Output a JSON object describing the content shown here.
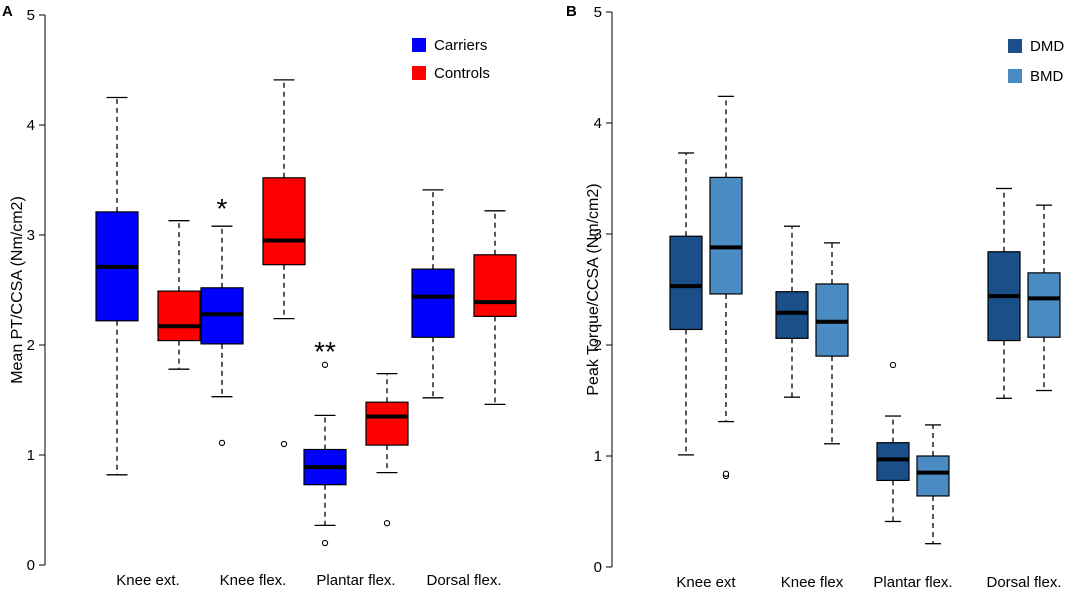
{
  "chart_data": [
    {
      "type": "box",
      "panel": "A",
      "ylabel": "Mean PT/CCSA (Nm/cm2)",
      "ylim": [
        0,
        5
      ],
      "yticks": [
        0,
        1,
        2,
        3,
        4,
        5
      ],
      "categories": [
        "Knee ext.",
        "Knee flex.",
        "Plantar flex.",
        "Dorsal flex."
      ],
      "legend_position": "top-right",
      "series": [
        {
          "name": "Carriers",
          "color": "#0000ff",
          "boxes": [
            {
              "min": 0.82,
              "q1": 2.22,
              "median": 2.71,
              "q3": 3.21,
              "max": 4.25,
              "outliers": []
            },
            {
              "min": 1.53,
              "q1": 2.01,
              "median": 2.28,
              "q3": 2.52,
              "max": 3.08,
              "outliers": [
                1.11
              ]
            },
            {
              "min": 0.36,
              "q1": 0.73,
              "median": 0.89,
              "q3": 1.05,
              "max": 1.36,
              "outliers": [
                0.2,
                1.82
              ]
            },
            {
              "min": 1.52,
              "q1": 2.07,
              "median": 2.44,
              "q3": 2.69,
              "max": 3.41,
              "outliers": []
            }
          ]
        },
        {
          "name": "Controls",
          "color": "#ff0000",
          "boxes": [
            {
              "min": 1.78,
              "q1": 2.04,
              "median": 2.17,
              "q3": 2.49,
              "max": 3.13,
              "outliers": []
            },
            {
              "min": 2.24,
              "q1": 2.73,
              "median": 2.95,
              "q3": 3.52,
              "max": 4.41,
              "outliers": [
                1.1
              ]
            },
            {
              "min": 0.84,
              "q1": 1.09,
              "median": 1.35,
              "q3": 1.48,
              "max": 1.74,
              "outliers": [
                0.38
              ]
            },
            {
              "min": 1.46,
              "q1": 2.26,
              "median": 2.39,
              "q3": 2.82,
              "max": 3.22,
              "outliers": []
            }
          ]
        }
      ],
      "annotations": [
        {
          "text": "*",
          "category": "Knee flex.",
          "series": "Carriers",
          "value": 3.28
        },
        {
          "text": "**",
          "category": "Plantar flex.",
          "series": "Carriers",
          "value": 1.98
        }
      ]
    },
    {
      "type": "box",
      "panel": "B",
      "ylabel": "Peak Torque/CCSA (Nm/cm2)",
      "ylim": [
        0,
        5
      ],
      "yticks": [
        0,
        1,
        2,
        3,
        4,
        5
      ],
      "categories": [
        "Knee ext",
        "Knee flex",
        "Plantar flex.",
        "Dorsal flex."
      ],
      "legend_position": "top-right",
      "series": [
        {
          "name": "DMD",
          "color": "#1b4f8a",
          "boxes": [
            {
              "min": 1.01,
              "q1": 2.14,
              "median": 2.53,
              "q3": 2.98,
              "max": 3.73,
              "outliers": []
            },
            {
              "min": 1.53,
              "q1": 2.06,
              "median": 2.29,
              "q3": 2.48,
              "max": 3.07,
              "outliers": []
            },
            {
              "min": 0.41,
              "q1": 0.78,
              "median": 0.97,
              "q3": 1.12,
              "max": 1.36,
              "outliers": [
                1.82
              ]
            },
            {
              "min": 1.52,
              "q1": 2.04,
              "median": 2.44,
              "q3": 2.84,
              "max": 3.41,
              "outliers": []
            }
          ]
        },
        {
          "name": "BMD",
          "color": "#4a8bc4",
          "boxes": [
            {
              "min": 1.31,
              "q1": 2.46,
              "median": 2.88,
              "q3": 3.51,
              "max": 4.24,
              "outliers": [
                0.82,
                0.84
              ]
            },
            {
              "min": 1.11,
              "q1": 1.9,
              "median": 2.21,
              "q3": 2.55,
              "max": 2.92,
              "outliers": []
            },
            {
              "min": 0.21,
              "q1": 0.64,
              "median": 0.85,
              "q3": 1.0,
              "max": 1.28,
              "outliers": []
            },
            {
              "min": 1.59,
              "q1": 2.07,
              "median": 2.42,
              "q3": 2.65,
              "max": 3.26,
              "outliers": []
            }
          ]
        }
      ],
      "annotations": []
    }
  ]
}
